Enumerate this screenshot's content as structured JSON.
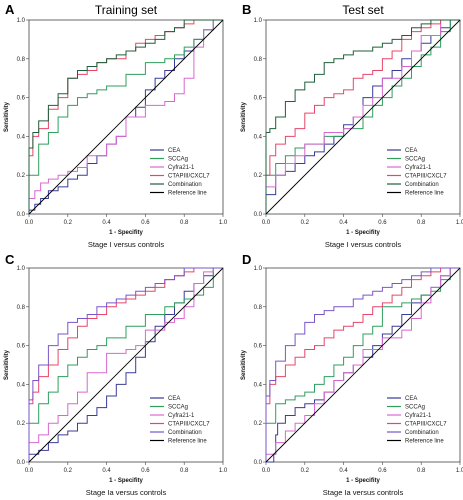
{
  "chart_data": [
    {
      "panel": "A",
      "type": "line",
      "title": "Training set",
      "xlabel": "1 - Specifity",
      "ylabel": "Sensitivity",
      "caption": "Stage I versus controls",
      "xlim": [
        0,
        1
      ],
      "ylim": [
        0,
        1
      ],
      "xticks": [
        "0.0",
        "0.2",
        "0.4",
        "0.6",
        "0.8",
        "1.0"
      ],
      "yticks": [
        "0.0",
        "0.2",
        "0.4",
        "0.6",
        "0.8",
        "1.0"
      ],
      "legend_position": "bottom-right",
      "series": [
        {
          "name": "CEA",
          "color": "#3b3b9a",
          "x": [
            0,
            0.03,
            0.06,
            0.1,
            0.15,
            0.2,
            0.25,
            0.3,
            0.35,
            0.4,
            0.45,
            0.5,
            0.55,
            0.6,
            0.65,
            0.7,
            0.75,
            0.8,
            0.85,
            0.9,
            0.95,
            1.0
          ],
          "y": [
            0,
            0.02,
            0.05,
            0.08,
            0.12,
            0.14,
            0.18,
            0.2,
            0.26,
            0.3,
            0.36,
            0.4,
            0.5,
            0.55,
            0.64,
            0.7,
            0.74,
            0.8,
            0.84,
            0.9,
            0.95,
            1.0
          ]
        },
        {
          "name": "SCCAg",
          "color": "#2e9e5e",
          "x": [
            0,
            0.05,
            0.1,
            0.15,
            0.2,
            0.25,
            0.3,
            0.35,
            0.4,
            0.5,
            0.6,
            0.7,
            0.75,
            0.8,
            0.85,
            0.9,
            0.95,
            1.0
          ],
          "y": [
            0,
            0.2,
            0.36,
            0.42,
            0.5,
            0.56,
            0.6,
            0.62,
            0.64,
            0.66,
            0.72,
            0.78,
            0.8,
            0.82,
            0.86,
            0.9,
            0.95,
            1.0
          ]
        },
        {
          "name": "Cyfra21-1",
          "color": "#d868d0",
          "x": [
            0,
            0.03,
            0.06,
            0.1,
            0.15,
            0.2,
            0.25,
            0.3,
            0.4,
            0.45,
            0.5,
            0.6,
            0.7,
            0.75,
            0.8,
            0.85,
            0.9,
            0.95,
            1.0
          ],
          "y": [
            0,
            0.08,
            0.12,
            0.16,
            0.18,
            0.2,
            0.22,
            0.24,
            0.3,
            0.36,
            0.4,
            0.5,
            0.56,
            0.58,
            0.62,
            0.7,
            0.86,
            0.95,
            1.0
          ]
        },
        {
          "name": "CTAPIII/CXCL7",
          "color": "#e8456a",
          "x": [
            0,
            0.02,
            0.05,
            0.1,
            0.15,
            0.2,
            0.25,
            0.3,
            0.35,
            0.4,
            0.5,
            0.55,
            0.6,
            0.65,
            0.7,
            0.75,
            0.8,
            0.85,
            0.9,
            1.0
          ],
          "y": [
            0,
            0.3,
            0.4,
            0.44,
            0.54,
            0.6,
            0.7,
            0.72,
            0.74,
            0.78,
            0.8,
            0.84,
            0.88,
            0.9,
            0.92,
            0.94,
            0.96,
            0.98,
            1.0,
            1.0
          ]
        },
        {
          "name": "Combination",
          "color": "#1f5f3a",
          "x": [
            0,
            0.02,
            0.05,
            0.1,
            0.15,
            0.2,
            0.25,
            0.3,
            0.35,
            0.4,
            0.45,
            0.5,
            0.55,
            0.6,
            0.65,
            0.7,
            0.75,
            0.8,
            0.9,
            1.0
          ],
          "y": [
            0,
            0.34,
            0.42,
            0.48,
            0.56,
            0.62,
            0.7,
            0.74,
            0.76,
            0.78,
            0.8,
            0.82,
            0.84,
            0.86,
            0.88,
            0.9,
            0.94,
            0.96,
            1.0,
            1.0
          ]
        },
        {
          "name": "Reference line",
          "color": "#000000",
          "x": [
            0,
            1
          ],
          "y": [
            0,
            1
          ]
        }
      ]
    },
    {
      "panel": "B",
      "type": "line",
      "title": "Test set",
      "xlabel": "1 - Specifity",
      "ylabel": "Sensitivity",
      "caption": "Stage I versus controls",
      "xlim": [
        0,
        1
      ],
      "ylim": [
        0,
        1
      ],
      "xticks": [
        "0.0",
        "0.2",
        "0.4",
        "0.6",
        "0.8",
        "1.0"
      ],
      "yticks": [
        "0.0",
        "0.2",
        "0.4",
        "0.6",
        "0.8",
        "1.0"
      ],
      "legend_position": "bottom-right",
      "series": [
        {
          "name": "CEA",
          "color": "#3b3b9a",
          "x": [
            0,
            0.05,
            0.1,
            0.15,
            0.2,
            0.25,
            0.3,
            0.35,
            0.4,
            0.45,
            0.5,
            0.55,
            0.6,
            0.65,
            0.7,
            0.75,
            0.8,
            0.85,
            0.9,
            0.95,
            1.0
          ],
          "y": [
            0,
            0.1,
            0.2,
            0.22,
            0.26,
            0.3,
            0.32,
            0.36,
            0.4,
            0.46,
            0.5,
            0.6,
            0.66,
            0.7,
            0.74,
            0.8,
            0.84,
            0.88,
            0.92,
            0.96,
            1.0
          ]
        },
        {
          "name": "SCCAg",
          "color": "#2e9e5e",
          "x": [
            0,
            0.05,
            0.1,
            0.15,
            0.2,
            0.3,
            0.4,
            0.5,
            0.55,
            0.6,
            0.65,
            0.7,
            0.75,
            0.8,
            0.85,
            0.9,
            0.95,
            1.0
          ],
          "y": [
            0,
            0.2,
            0.26,
            0.3,
            0.34,
            0.36,
            0.4,
            0.44,
            0.5,
            0.56,
            0.6,
            0.66,
            0.7,
            0.76,
            0.82,
            0.86,
            0.94,
            1.0
          ]
        },
        {
          "name": "Cyfra21-1",
          "color": "#d868d0",
          "x": [
            0,
            0.05,
            0.1,
            0.15,
            0.2,
            0.3,
            0.4,
            0.45,
            0.5,
            0.55,
            0.6,
            0.7,
            0.75,
            0.8,
            0.9,
            1.0
          ],
          "y": [
            0,
            0.14,
            0.2,
            0.26,
            0.3,
            0.36,
            0.42,
            0.44,
            0.5,
            0.56,
            0.6,
            0.7,
            0.76,
            0.84,
            0.92,
            1.0
          ]
        },
        {
          "name": "CTAPIII/CXCL7",
          "color": "#e8456a",
          "x": [
            0,
            0.02,
            0.05,
            0.1,
            0.15,
            0.2,
            0.25,
            0.3,
            0.35,
            0.4,
            0.45,
            0.5,
            0.55,
            0.6,
            0.65,
            0.7,
            0.75,
            0.8,
            0.85,
            0.9,
            1.0
          ],
          "y": [
            0,
            0.2,
            0.3,
            0.36,
            0.4,
            0.44,
            0.52,
            0.56,
            0.6,
            0.62,
            0.64,
            0.7,
            0.72,
            0.74,
            0.8,
            0.84,
            0.9,
            0.94,
            0.96,
            0.98,
            1.0
          ]
        },
        {
          "name": "Combination",
          "color": "#1f5f3a",
          "x": [
            0,
            0.02,
            0.05,
            0.1,
            0.15,
            0.2,
            0.25,
            0.3,
            0.35,
            0.4,
            0.45,
            0.5,
            0.55,
            0.6,
            0.65,
            0.7,
            0.75,
            0.8,
            0.85,
            0.9,
            1.0
          ],
          "y": [
            0,
            0.42,
            0.44,
            0.5,
            0.58,
            0.64,
            0.68,
            0.72,
            0.78,
            0.8,
            0.82,
            0.84,
            0.84,
            0.86,
            0.88,
            0.9,
            0.92,
            0.96,
            0.98,
            1.0,
            1.0
          ]
        },
        {
          "name": "Reference line",
          "color": "#000000",
          "x": [
            0,
            1
          ],
          "y": [
            0,
            1
          ]
        }
      ]
    },
    {
      "panel": "C",
      "type": "line",
      "title": "",
      "xlabel": "1 - Specifity",
      "ylabel": "Sensitivity",
      "caption": "Stage Ia versus controls",
      "xlim": [
        0,
        1
      ],
      "ylim": [
        0,
        1
      ],
      "xticks": [
        "0.0",
        "0.2",
        "0.4",
        "0.6",
        "0.8",
        "1.0"
      ],
      "yticks": [
        "0.0",
        "0.2",
        "0.4",
        "0.6",
        "0.8",
        "1.0"
      ],
      "legend_position": "bottom-right",
      "series": [
        {
          "name": "CEA",
          "color": "#3b3b9a",
          "x": [
            0,
            0.05,
            0.1,
            0.15,
            0.2,
            0.25,
            0.3,
            0.35,
            0.4,
            0.45,
            0.5,
            0.55,
            0.6,
            0.65,
            0.7,
            0.75,
            0.8,
            0.85,
            0.9,
            0.95,
            1.0
          ],
          "y": [
            0,
            0.04,
            0.06,
            0.1,
            0.14,
            0.16,
            0.2,
            0.24,
            0.28,
            0.34,
            0.4,
            0.46,
            0.54,
            0.62,
            0.7,
            0.76,
            0.82,
            0.88,
            0.92,
            0.96,
            1.0
          ]
        },
        {
          "name": "SCCAg",
          "color": "#2e9e5e",
          "x": [
            0,
            0.05,
            0.1,
            0.15,
            0.2,
            0.25,
            0.3,
            0.35,
            0.4,
            0.5,
            0.6,
            0.7,
            0.75,
            0.8,
            0.85,
            0.9,
            0.95,
            1.0
          ],
          "y": [
            0,
            0.2,
            0.3,
            0.36,
            0.44,
            0.5,
            0.54,
            0.58,
            0.6,
            0.64,
            0.7,
            0.76,
            0.8,
            0.82,
            0.84,
            0.86,
            0.9,
            1.0
          ]
        },
        {
          "name": "Cyfra21-1",
          "color": "#d868d0",
          "x": [
            0,
            0.05,
            0.1,
            0.15,
            0.2,
            0.25,
            0.3,
            0.4,
            0.5,
            0.55,
            0.6,
            0.7,
            0.75,
            0.8,
            0.85,
            0.9,
            0.95,
            1.0
          ],
          "y": [
            0,
            0.1,
            0.14,
            0.2,
            0.24,
            0.3,
            0.36,
            0.46,
            0.56,
            0.58,
            0.6,
            0.68,
            0.72,
            0.74,
            0.8,
            0.92,
            0.98,
            1.0
          ]
        },
        {
          "name": "CTAPIII/CXCL7",
          "color": "#e8456a",
          "x": [
            0,
            0.02,
            0.05,
            0.1,
            0.15,
            0.2,
            0.25,
            0.3,
            0.35,
            0.4,
            0.45,
            0.5,
            0.55,
            0.6,
            0.65,
            0.7,
            0.75,
            0.8,
            0.85,
            0.9,
            1.0
          ],
          "y": [
            0,
            0.3,
            0.36,
            0.44,
            0.5,
            0.58,
            0.64,
            0.7,
            0.74,
            0.76,
            0.8,
            0.82,
            0.84,
            0.86,
            0.88,
            0.9,
            0.94,
            0.96,
            0.98,
            1.0,
            1.0
          ]
        },
        {
          "name": "Combination",
          "color": "#7a55c8",
          "x": [
            0,
            0.02,
            0.05,
            0.1,
            0.15,
            0.2,
            0.25,
            0.3,
            0.35,
            0.4,
            0.45,
            0.5,
            0.55,
            0.6,
            0.65,
            0.7,
            0.75,
            0.8,
            0.9,
            1.0
          ],
          "y": [
            0,
            0.32,
            0.42,
            0.5,
            0.6,
            0.66,
            0.72,
            0.74,
            0.76,
            0.8,
            0.82,
            0.84,
            0.86,
            0.88,
            0.9,
            0.92,
            0.94,
            0.96,
            1.0,
            1.0
          ]
        },
        {
          "name": "Reference line",
          "color": "#000000",
          "x": [
            0,
            1
          ],
          "y": [
            0,
            1
          ]
        }
      ]
    },
    {
      "panel": "D",
      "type": "line",
      "title": "",
      "xlabel": "1 - Specifity",
      "ylabel": "Sensitivity",
      "caption": "Stage Ia versus controls",
      "xlim": [
        0,
        1
      ],
      "ylim": [
        0,
        1
      ],
      "xticks": [
        "0.0",
        "0.2",
        "0.4",
        "0.6",
        "0.8",
        "1.0"
      ],
      "yticks": [
        "0.0",
        "0.2",
        "0.4",
        "0.6",
        "0.8",
        "1.0"
      ],
      "legend_position": "bottom-right",
      "series": [
        {
          "name": "CEA",
          "color": "#3b3b9a",
          "x": [
            0,
            0.04,
            0.05,
            0.06,
            0.1,
            0.15,
            0.2,
            0.25,
            0.3,
            0.35,
            0.4,
            0.45,
            0.5,
            0.55,
            0.6,
            0.65,
            0.7,
            0.75,
            0.8,
            0.85,
            0.9,
            0.95,
            1.0
          ],
          "y": [
            0,
            0,
            0.04,
            0.14,
            0.2,
            0.24,
            0.28,
            0.3,
            0.32,
            0.36,
            0.42,
            0.46,
            0.5,
            0.54,
            0.6,
            0.66,
            0.7,
            0.76,
            0.82,
            0.86,
            0.9,
            0.96,
            1.0
          ]
        },
        {
          "name": "SCCAg",
          "color": "#2e9e5e",
          "x": [
            0,
            0.05,
            0.1,
            0.15,
            0.2,
            0.25,
            0.3,
            0.35,
            0.4,
            0.45,
            0.5,
            0.55,
            0.6,
            0.7,
            0.75,
            0.8,
            0.85,
            0.9,
            0.95,
            1.0
          ],
          "y": [
            0,
            0.2,
            0.3,
            0.32,
            0.34,
            0.36,
            0.4,
            0.44,
            0.5,
            0.54,
            0.6,
            0.66,
            0.7,
            0.8,
            0.82,
            0.84,
            0.86,
            0.88,
            0.94,
            1.0
          ]
        },
        {
          "name": "Cyfra21-1",
          "color": "#d868d0",
          "x": [
            0,
            0.05,
            0.1,
            0.15,
            0.2,
            0.25,
            0.3,
            0.35,
            0.4,
            0.45,
            0.5,
            0.6,
            0.7,
            0.75,
            0.8,
            0.85,
            0.9,
            0.95,
            1.0
          ],
          "y": [
            0,
            0.04,
            0.1,
            0.16,
            0.2,
            0.24,
            0.3,
            0.36,
            0.42,
            0.46,
            0.5,
            0.58,
            0.64,
            0.68,
            0.74,
            0.82,
            0.9,
            0.96,
            1.0
          ]
        },
        {
          "name": "CTAPIII/CXCL7",
          "color": "#e8456a",
          "x": [
            0,
            0.02,
            0.05,
            0.1,
            0.15,
            0.2,
            0.25,
            0.3,
            0.35,
            0.4,
            0.45,
            0.5,
            0.55,
            0.6,
            0.65,
            0.7,
            0.75,
            0.8,
            0.85,
            0.9,
            0.95,
            1.0
          ],
          "y": [
            0,
            0.3,
            0.4,
            0.44,
            0.5,
            0.54,
            0.58,
            0.6,
            0.64,
            0.68,
            0.7,
            0.72,
            0.76,
            0.8,
            0.82,
            0.86,
            0.9,
            0.94,
            0.96,
            0.98,
            1.0,
            1.0
          ]
        },
        {
          "name": "Combination",
          "color": "#7a55c8",
          "x": [
            0,
            0.02,
            0.05,
            0.1,
            0.15,
            0.2,
            0.25,
            0.3,
            0.35,
            0.4,
            0.45,
            0.5,
            0.55,
            0.6,
            0.65,
            0.7,
            0.75,
            0.8,
            0.85,
            0.9,
            1.0
          ],
          "y": [
            0,
            0.34,
            0.42,
            0.52,
            0.6,
            0.66,
            0.72,
            0.76,
            0.78,
            0.8,
            0.8,
            0.84,
            0.86,
            0.88,
            0.9,
            0.92,
            0.94,
            0.96,
            0.98,
            1.0,
            1.0
          ]
        },
        {
          "name": "Reference line",
          "color": "#000000",
          "x": [
            0,
            1
          ],
          "y": [
            0,
            1
          ]
        }
      ]
    }
  ]
}
